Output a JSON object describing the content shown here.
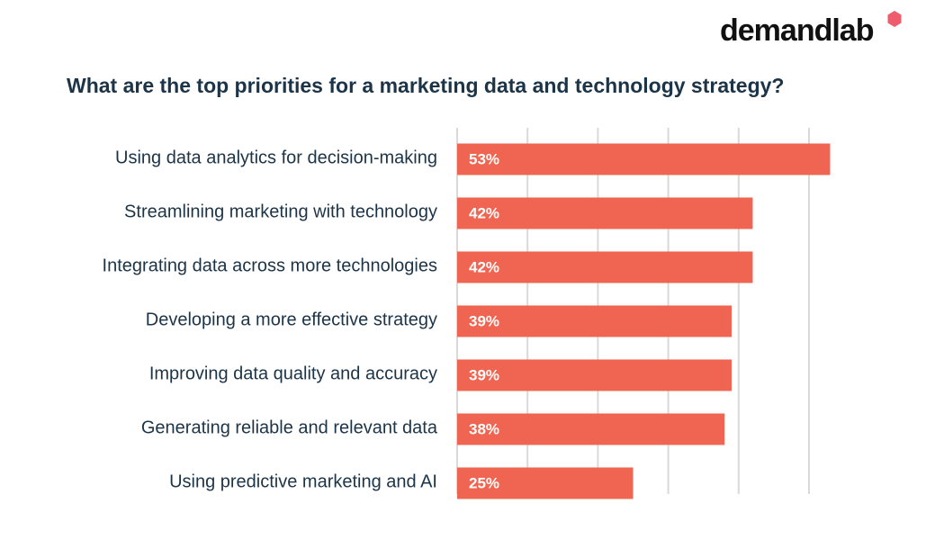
{
  "brand": {
    "name": "demandlab",
    "mark_color": "#ee5c6e",
    "mark_icon": "hexagon-icon"
  },
  "chart_data": {
    "type": "bar",
    "orientation": "horizontal",
    "title": "What are the top priorities for a marketing data and technology strategy?",
    "categories": [
      "Using data analytics for decision-making",
      "Streamlining marketing with technology",
      "Integrating data across more technologies",
      "Developing a more effective strategy",
      "Improving data quality and accuracy",
      "Generating reliable and relevant data",
      "Using predictive marketing and AI"
    ],
    "values": [
      53,
      42,
      42,
      39,
      39,
      38,
      25
    ],
    "value_labels": [
      "53%",
      "42%",
      "42%",
      "39%",
      "39%",
      "38%",
      "25%"
    ],
    "unit": "%",
    "xlim": [
      0,
      55
    ],
    "gridlines": [
      0,
      10,
      20,
      30,
      40,
      50
    ],
    "grid": true,
    "legend": "none",
    "bar_color": "#ef6552",
    "grid_color": "#d9d9d9",
    "label_color": "#1c3447"
  }
}
